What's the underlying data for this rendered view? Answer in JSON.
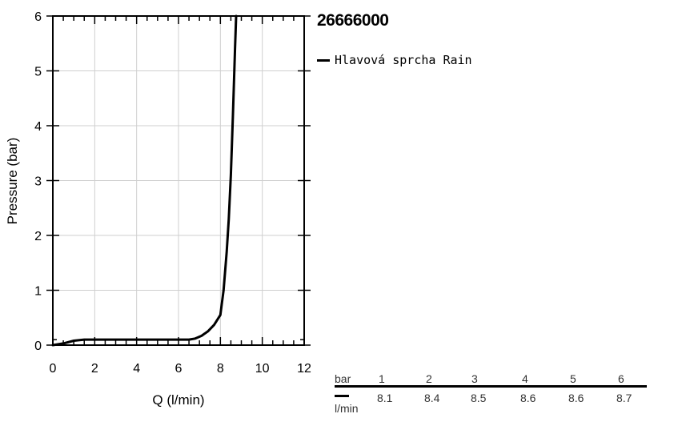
{
  "chart_data": {
    "type": "line",
    "title": "26666000",
    "xlabel": "Q (l/min)",
    "ylabel": "Pressure (bar)",
    "xlim": [
      0,
      12
    ],
    "ylim": [
      0,
      6
    ],
    "xticks": [
      0,
      2,
      4,
      6,
      8,
      10,
      12
    ],
    "yticks": [
      0,
      1,
      2,
      3,
      4,
      5,
      6
    ],
    "grid": true,
    "legend_position": "top-right",
    "series": [
      {
        "name": "Hlavová sprcha Rain",
        "color": "#000000",
        "points": [
          [
            0,
            0
          ],
          [
            0.5,
            0.03
          ],
          [
            1.0,
            0.08
          ],
          [
            1.5,
            0.1
          ],
          [
            2,
            0.1
          ],
          [
            3,
            0.1
          ],
          [
            4,
            0.1
          ],
          [
            5,
            0.1
          ],
          [
            6,
            0.1
          ],
          [
            6.5,
            0.1
          ],
          [
            6.8,
            0.12
          ],
          [
            7.1,
            0.17
          ],
          [
            7.4,
            0.25
          ],
          [
            7.7,
            0.37
          ],
          [
            8.0,
            0.55
          ],
          [
            8.15,
            1.0
          ],
          [
            8.3,
            1.7
          ],
          [
            8.4,
            2.3
          ],
          [
            8.5,
            3.1
          ],
          [
            8.6,
            4.2
          ],
          [
            8.7,
            5.4
          ],
          [
            8.75,
            6.0
          ]
        ]
      }
    ]
  },
  "flow_table": {
    "pressure_unit": "bar",
    "flow_unit": "l/min",
    "pressures": [
      "1",
      "2",
      "3",
      "4",
      "5",
      "6"
    ],
    "flows": [
      "8.1",
      "8.4",
      "8.5",
      "8.6",
      "8.6",
      "8.7"
    ]
  }
}
